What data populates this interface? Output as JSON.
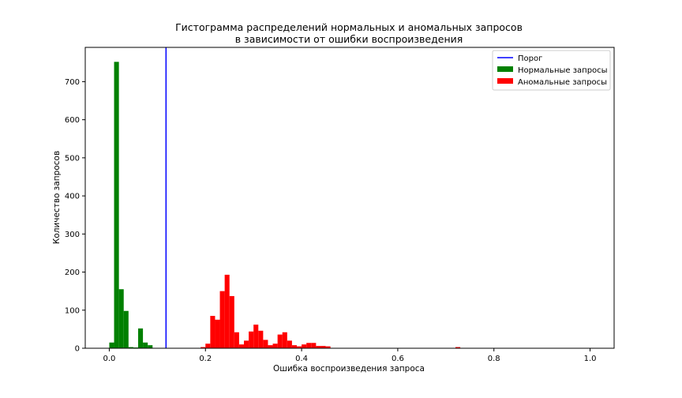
{
  "chart_data": {
    "type": "bar",
    "title": [
      "Гистограмма распределений нормальных и аномальных запросов",
      "в зависимости от ошибки воспроизведения"
    ],
    "xlabel": "Ошибка воспроизведения запроса",
    "ylabel": "Количество запросов",
    "xlim": [
      -0.05,
      1.05
    ],
    "ylim": [
      0,
      790
    ],
    "xticks": [
      0.0,
      0.2,
      0.4,
      0.6,
      0.8,
      1.0
    ],
    "xtick_labels": [
      "0.0",
      "0.2",
      "0.4",
      "0.6",
      "0.8",
      "1.0"
    ],
    "yticks": [
      0,
      100,
      200,
      300,
      400,
      500,
      600,
      700
    ],
    "ytick_labels": [
      "0",
      "100",
      "200",
      "300",
      "400",
      "500",
      "600",
      "700"
    ],
    "bin_width": 0.01,
    "threshold": {
      "name": "Порог",
      "x": 0.118,
      "color": "#0000ff"
    },
    "legend_position": "upper right",
    "series": [
      {
        "name": "Нормальные запросы",
        "color": "#008000",
        "bins": [
          [
            0.0,
            15
          ],
          [
            0.01,
            752
          ],
          [
            0.02,
            155
          ],
          [
            0.03,
            98
          ],
          [
            0.04,
            3
          ],
          [
            0.05,
            2
          ],
          [
            0.06,
            52
          ],
          [
            0.07,
            15
          ],
          [
            0.08,
            8
          ]
        ]
      },
      {
        "name": "Аномальные запросы",
        "color": "#ff0000",
        "bins": [
          [
            0.19,
            3
          ],
          [
            0.2,
            12
          ],
          [
            0.21,
            85
          ],
          [
            0.22,
            75
          ],
          [
            0.23,
            150
          ],
          [
            0.24,
            193
          ],
          [
            0.25,
            137
          ],
          [
            0.26,
            42
          ],
          [
            0.27,
            10
          ],
          [
            0.28,
            20
          ],
          [
            0.29,
            44
          ],
          [
            0.3,
            62
          ],
          [
            0.31,
            46
          ],
          [
            0.32,
            22
          ],
          [
            0.33,
            8
          ],
          [
            0.34,
            12
          ],
          [
            0.35,
            36
          ],
          [
            0.36,
            42
          ],
          [
            0.37,
            20
          ],
          [
            0.38,
            8
          ],
          [
            0.39,
            5
          ],
          [
            0.4,
            10
          ],
          [
            0.41,
            14
          ],
          [
            0.42,
            14
          ],
          [
            0.43,
            6
          ],
          [
            0.44,
            6
          ],
          [
            0.45,
            5
          ],
          [
            0.72,
            3
          ]
        ]
      }
    ]
  }
}
